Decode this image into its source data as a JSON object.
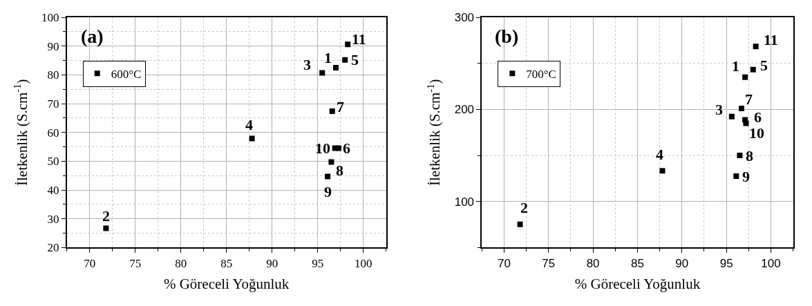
{
  "chart_data": [
    {
      "type": "scatter",
      "xlabel": "% Göreceli Yoğunluk",
      "ylabel": "İletkenlik (S.cm$^{-1}$)",
      "marker": "square",
      "grid": true,
      "legend": "top left",
      "series": [
        {
          "name": "600°C",
          "color": "#000000",
          "x": [
            97.0,
            71.8,
            95.5,
            87.8,
            98.0,
            97.3,
            96.6,
            96.5,
            96.1,
            96.9,
            98.3
          ],
          "values": [
            82.5,
            26.7,
            80.7,
            57.9,
            85.2,
            54.5,
            67.4,
            49.7,
            44.7,
            54.5,
            90.6
          ]
        }
      ],
      "xlim": [
        67.5,
        102.5
      ],
      "ylim": [
        20,
        100
      ],
      "xticks": [
        {
          "value": 67.5,
          "label": null
        },
        70,
        {
          "value": 72.5,
          "label": null
        },
        75,
        {
          "value": 77.5,
          "label": null
        },
        80,
        {
          "value": 82.5,
          "label": null
        },
        85,
        {
          "value": 87.5,
          "label": null
        },
        90,
        {
          "value": 92.5,
          "label": null
        },
        95,
        {
          "value": 97.5,
          "label": null
        },
        100,
        {
          "value": 102.5,
          "label": null
        }
      ],
      "yticks": [
        20,
        {
          "value": 25,
          "label": null
        },
        30,
        {
          "value": 35,
          "label": null
        },
        40,
        {
          "value": 45,
          "label": null
        },
        50,
        {
          "value": 55,
          "label": null
        },
        60,
        {
          "value": 65,
          "label": null
        },
        70,
        {
          "value": 75,
          "label": null
        },
        80,
        {
          "value": 85,
          "label": null
        },
        90,
        {
          "value": 95,
          "label": null
        },
        100
      ],
      "annotations": [
        "(a)",
        {
          "text": "1",
          "x": 97.0,
          "y": 82.5
        },
        {
          "text": "2",
          "x": 71.8,
          "y": 26.7
        },
        {
          "text": "3",
          "x": 95.5,
          "y": 80.7
        },
        {
          "text": "4",
          "x": 87.8,
          "y": 57.9
        },
        {
          "text": "5",
          "x": 98.0,
          "y": 85.2
        },
        {
          "text": "6",
          "x": 97.3,
          "y": 54.5
        },
        {
          "text": "7",
          "x": 96.6,
          "y": 67.4
        },
        {
          "text": "8",
          "x": 96.5,
          "y": 49.7
        },
        {
          "text": "9",
          "x": 96.1,
          "y": 44.7
        },
        {
          "text": "10",
          "x": 96.9,
          "y": 54.5
        },
        {
          "text": "11",
          "x": 98.3,
          "y": 90.6
        }
      ]
    },
    {
      "type": "scatter",
      "xlabel": "% Göreceli Yoğunluk",
      "ylabel": "İletkenlik (S.cm$^{-1}$)",
      "marker": "square",
      "grid": true,
      "legend": "top left",
      "series": [
        {
          "name": "700°C",
          "color": "#000000",
          "x": [
            97.1,
            71.8,
            95.6,
            87.8,
            98.0,
            97.1,
            96.7,
            96.5,
            96.1,
            97.2,
            98.3
          ],
          "values": [
            234.9,
            75.2,
            192.3,
            133.4,
            243.3,
            188.6,
            201.0,
            150.0,
            127.5,
            185.0,
            268.3
          ]
        }
      ],
      "xlim": [
        67.5,
        102.5
      ],
      "ylim": [
        50,
        300
      ],
      "xticks": [
        {
          "value": 67.5,
          "label": null
        },
        70,
        {
          "value": 72.5,
          "label": null
        },
        75,
        {
          "value": 77.5,
          "label": null
        },
        80,
        {
          "value": 82.5,
          "label": null
        },
        85,
        {
          "value": 87.5,
          "label": null
        },
        90,
        {
          "value": 92.5,
          "label": null
        },
        95,
        {
          "value": 97.5,
          "label": null
        },
        100,
        {
          "value": 102.5,
          "label": null
        }
      ],
      "yticks": [
        {
          "value": 50,
          "label": null
        },
        100,
        {
          "value": 150,
          "label": null
        },
        200,
        {
          "value": 250,
          "label": null
        },
        300
      ],
      "annotations": [
        "(b)",
        {
          "text": "1",
          "x": 97.1,
          "y": 234.9
        },
        {
          "text": "2",
          "x": 71.8,
          "y": 75.2
        },
        {
          "text": "3",
          "x": 95.6,
          "y": 192.3
        },
        {
          "text": "4",
          "x": 87.8,
          "y": 133.4
        },
        {
          "text": "5",
          "x": 98.0,
          "y": 243.3
        },
        {
          "text": "6",
          "x": 97.1,
          "y": 188.6
        },
        {
          "text": "7",
          "x": 96.7,
          "y": 201.0
        },
        {
          "text": "8",
          "x": 96.5,
          "y": 150.0
        },
        {
          "text": "9",
          "x": 96.1,
          "y": 127.5
        },
        {
          "text": "10",
          "x": 97.2,
          "y": 185.0
        },
        {
          "text": "11",
          "x": 98.3,
          "y": 268.3
        }
      ]
    }
  ]
}
